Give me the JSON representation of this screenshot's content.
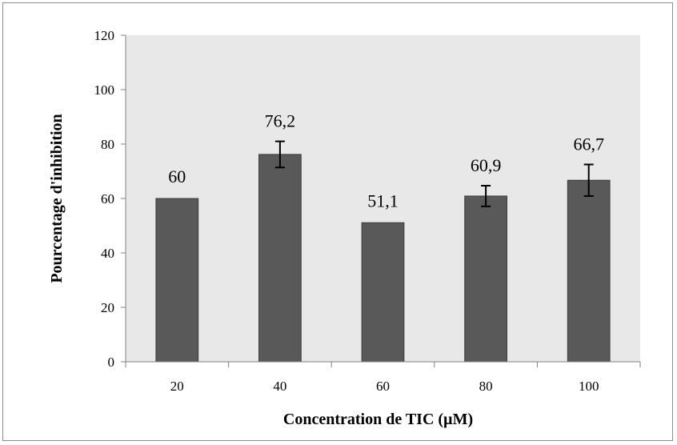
{
  "chart_data": {
    "type": "bar",
    "title": "",
    "xlabel": "Concentration de TIC (µM)",
    "ylabel": "Pourcentage d'inhibition",
    "categories": [
      "20",
      "40",
      "60",
      "80",
      "100"
    ],
    "values": [
      60,
      76.2,
      51.1,
      60.9,
      66.7
    ],
    "value_labels": [
      "60",
      "76,2",
      "51,1",
      "60,9",
      "66,7"
    ],
    "error_bars": [
      0,
      4.8,
      0,
      3.8,
      5.8
    ],
    "ylim": [
      0,
      120
    ],
    "yticks": [
      "0",
      "20",
      "40",
      "60",
      "80",
      "100",
      "120"
    ],
    "grid": false,
    "legend": "none",
    "colors": {
      "bar_fill": "#595959",
      "bar_stroke": "#3a3a3a",
      "plot_area": "#e8e8e8",
      "axis": "#808080",
      "error_bar": "#000000"
    }
  }
}
